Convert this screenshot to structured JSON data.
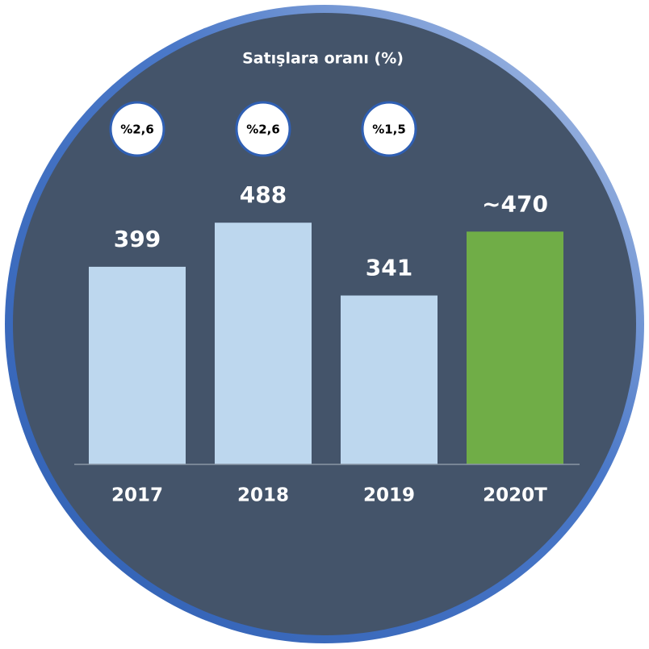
{
  "chart_data": {
    "type": "bar",
    "subtitle": "Satışlara oranı (%)",
    "categories": [
      "2017",
      "2018",
      "2019",
      "2020T"
    ],
    "values": [
      399,
      488,
      341,
      470
    ],
    "value_labels": [
      "399",
      "488",
      "341",
      "~470"
    ],
    "colors": [
      "#bdd7ee",
      "#bdd7ee",
      "#bdd7ee",
      "#70ad47"
    ],
    "ratio_labels": [
      "%2,6",
      "%2,6",
      "%1,5"
    ],
    "ylim": [
      0,
      700
    ]
  }
}
